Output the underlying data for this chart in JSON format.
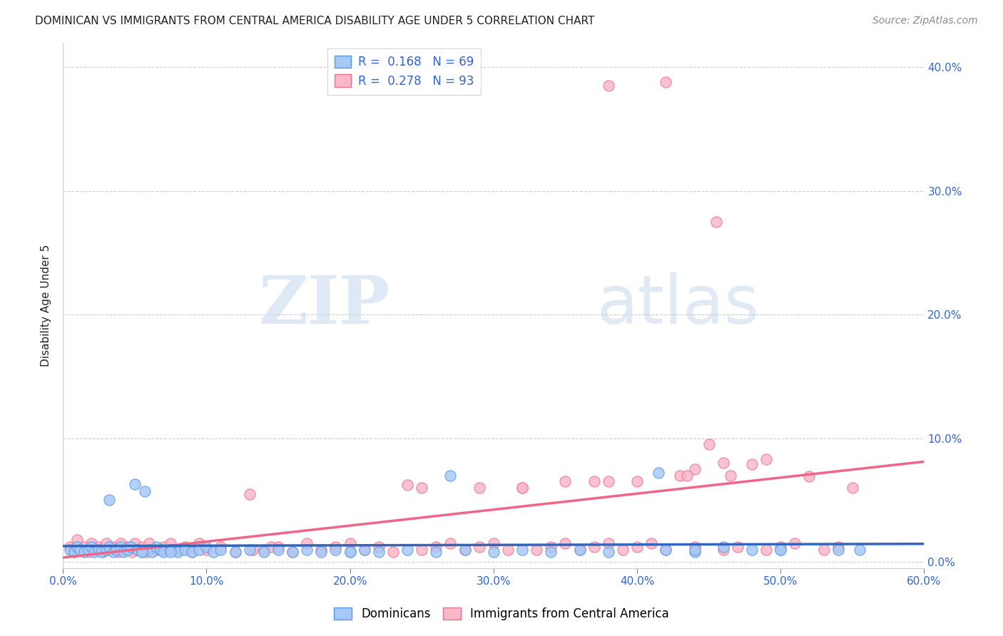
{
  "title": "DOMINICAN VS IMMIGRANTS FROM CENTRAL AMERICA DISABILITY AGE UNDER 5 CORRELATION CHART",
  "source": "Source: ZipAtlas.com",
  "ylabel": "Disability Age Under 5",
  "xlim": [
    0.0,
    0.6
  ],
  "ylim": [
    -0.005,
    0.42
  ],
  "x_ticks": [
    0.0,
    0.1,
    0.2,
    0.3,
    0.4,
    0.5,
    0.6
  ],
  "x_tick_labels": [
    "0.0%",
    "10.0%",
    "20.0%",
    "30.0%",
    "40.0%",
    "50.0%",
    "60.0%"
  ],
  "y_ticks": [
    0.0,
    0.1,
    0.2,
    0.3,
    0.4
  ],
  "y_tick_labels": [
    "0.0%",
    "10.0%",
    "20.0%",
    "30.0%",
    "40.0%"
  ],
  "dominican_face_color": "#a8c8f8",
  "dominican_edge_color": "#5599dd",
  "central_america_face_color": "#f8b8c8",
  "central_america_edge_color": "#ee7090",
  "dominican_line_color": "#3366bb",
  "central_america_line_color": "#ee6688",
  "R_dominican": 0.168,
  "N_dominican": 69,
  "R_central_america": 0.278,
  "N_central_america": 93,
  "legend_label_dominican": "Dominicans",
  "legend_label_central_america": "Immigrants from Central America",
  "watermark_zip": "ZIP",
  "watermark_atlas": "atlas",
  "title_color": "#222222",
  "source_color": "#888888",
  "axis_label_color": "#222222",
  "tick_color": "#3366cc",
  "grid_color": "#cccccc",
  "dominican_scatter_x": [
    0.005,
    0.008,
    0.01,
    0.012,
    0.015,
    0.018,
    0.02,
    0.022,
    0.025,
    0.027,
    0.03,
    0.032,
    0.035,
    0.037,
    0.04,
    0.042,
    0.045,
    0.047,
    0.05,
    0.052,
    0.055,
    0.057,
    0.06,
    0.062,
    0.065,
    0.068,
    0.07,
    0.075,
    0.08,
    0.085,
    0.09,
    0.095,
    0.1,
    0.105,
    0.11,
    0.12,
    0.13,
    0.14,
    0.15,
    0.16,
    0.17,
    0.18,
    0.19,
    0.2,
    0.21,
    0.22,
    0.24,
    0.26,
    0.28,
    0.3,
    0.32,
    0.34,
    0.36,
    0.38,
    0.42,
    0.44,
    0.46,
    0.48,
    0.5,
    0.54,
    0.555,
    0.032,
    0.055,
    0.075,
    0.2,
    0.27,
    0.415,
    0.44,
    0.5
  ],
  "dominican_scatter_y": [
    0.01,
    0.008,
    0.012,
    0.01,
    0.008,
    0.01,
    0.012,
    0.008,
    0.01,
    0.008,
    0.01,
    0.012,
    0.008,
    0.01,
    0.012,
    0.008,
    0.01,
    0.012,
    0.063,
    0.01,
    0.008,
    0.057,
    0.01,
    0.008,
    0.012,
    0.01,
    0.008,
    0.01,
    0.008,
    0.01,
    0.008,
    0.01,
    0.012,
    0.008,
    0.01,
    0.008,
    0.01,
    0.008,
    0.01,
    0.008,
    0.01,
    0.008,
    0.01,
    0.008,
    0.01,
    0.008,
    0.01,
    0.008,
    0.01,
    0.008,
    0.01,
    0.008,
    0.01,
    0.008,
    0.01,
    0.008,
    0.012,
    0.01,
    0.01,
    0.01,
    0.01,
    0.05,
    0.008,
    0.008,
    0.008,
    0.07,
    0.072,
    0.01,
    0.01
  ],
  "central_america_scatter_x": [
    0.005,
    0.008,
    0.01,
    0.012,
    0.015,
    0.018,
    0.02,
    0.022,
    0.025,
    0.028,
    0.03,
    0.032,
    0.035,
    0.038,
    0.04,
    0.042,
    0.045,
    0.048,
    0.05,
    0.052,
    0.055,
    0.058,
    0.06,
    0.065,
    0.07,
    0.075,
    0.08,
    0.085,
    0.09,
    0.095,
    0.1,
    0.11,
    0.12,
    0.13,
    0.14,
    0.15,
    0.16,
    0.17,
    0.18,
    0.19,
    0.2,
    0.21,
    0.22,
    0.23,
    0.24,
    0.25,
    0.26,
    0.27,
    0.28,
    0.29,
    0.3,
    0.31,
    0.32,
    0.33,
    0.34,
    0.35,
    0.36,
    0.37,
    0.38,
    0.39,
    0.4,
    0.41,
    0.42,
    0.43,
    0.44,
    0.45,
    0.46,
    0.47,
    0.48,
    0.49,
    0.5,
    0.51,
    0.52,
    0.53,
    0.54,
    0.55,
    0.132,
    0.145,
    0.25,
    0.29,
    0.32,
    0.35,
    0.38,
    0.44,
    0.46,
    0.38,
    0.42,
    0.455,
    0.49,
    0.37,
    0.4,
    0.435,
    0.465
  ],
  "central_america_scatter_y": [
    0.012,
    0.008,
    0.018,
    0.01,
    0.012,
    0.008,
    0.015,
    0.01,
    0.012,
    0.008,
    0.015,
    0.01,
    0.012,
    0.008,
    0.015,
    0.01,
    0.012,
    0.008,
    0.015,
    0.01,
    0.012,
    0.008,
    0.015,
    0.01,
    0.012,
    0.015,
    0.01,
    0.012,
    0.008,
    0.015,
    0.01,
    0.012,
    0.008,
    0.055,
    0.01,
    0.012,
    0.008,
    0.015,
    0.01,
    0.012,
    0.015,
    0.01,
    0.012,
    0.008,
    0.062,
    0.01,
    0.012,
    0.015,
    0.01,
    0.012,
    0.015,
    0.01,
    0.06,
    0.01,
    0.012,
    0.015,
    0.01,
    0.012,
    0.015,
    0.01,
    0.012,
    0.015,
    0.01,
    0.07,
    0.012,
    0.095,
    0.01,
    0.012,
    0.079,
    0.01,
    0.012,
    0.015,
    0.069,
    0.01,
    0.012,
    0.06,
    0.01,
    0.012,
    0.06,
    0.06,
    0.06,
    0.065,
    0.065,
    0.075,
    0.08,
    0.385,
    0.388,
    0.275,
    0.083,
    0.065,
    0.065,
    0.07,
    0.07
  ]
}
